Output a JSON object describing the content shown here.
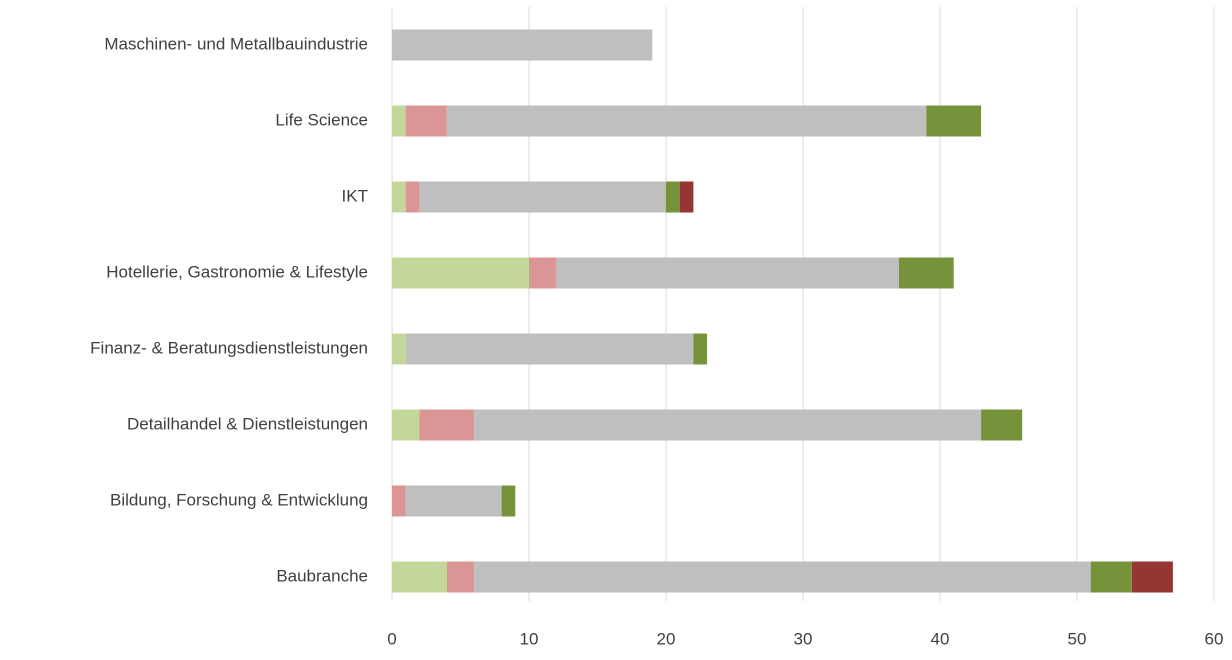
{
  "chart_data": {
    "type": "stacked_barh",
    "categories": [
      "Maschinen- und Metallbauindustrie",
      "Life Science",
      "IKT",
      "Hotellerie, Gastronomie & Lifestyle",
      "Finanz- & Beratungsdienstleistungen",
      "Detailhandel & Dienstleistungen",
      "Bildung, Forschung & Entwicklung",
      "Baubranche"
    ],
    "series": [
      {
        "color": "#c4d79b",
        "values": [
          0,
          1,
          1,
          10,
          1,
          2,
          0,
          4
        ]
      },
      {
        "color": "#da9694",
        "values": [
          0,
          3,
          1,
          2,
          0,
          4,
          1,
          2
        ]
      },
      {
        "color": "#bfbfbf",
        "values": [
          19,
          35,
          18,
          25,
          21,
          37,
          7,
          45
        ]
      },
      {
        "color": "#76933c",
        "values": [
          0,
          4,
          1,
          4,
          1,
          3,
          1,
          3
        ]
      },
      {
        "color": "#963634",
        "values": [
          0,
          0,
          1,
          0,
          0,
          0,
          0,
          3
        ]
      }
    ],
    "xlim": [
      0,
      60
    ],
    "xticks": [
      0,
      10,
      20,
      30,
      40,
      50,
      60
    ],
    "grid": true
  }
}
